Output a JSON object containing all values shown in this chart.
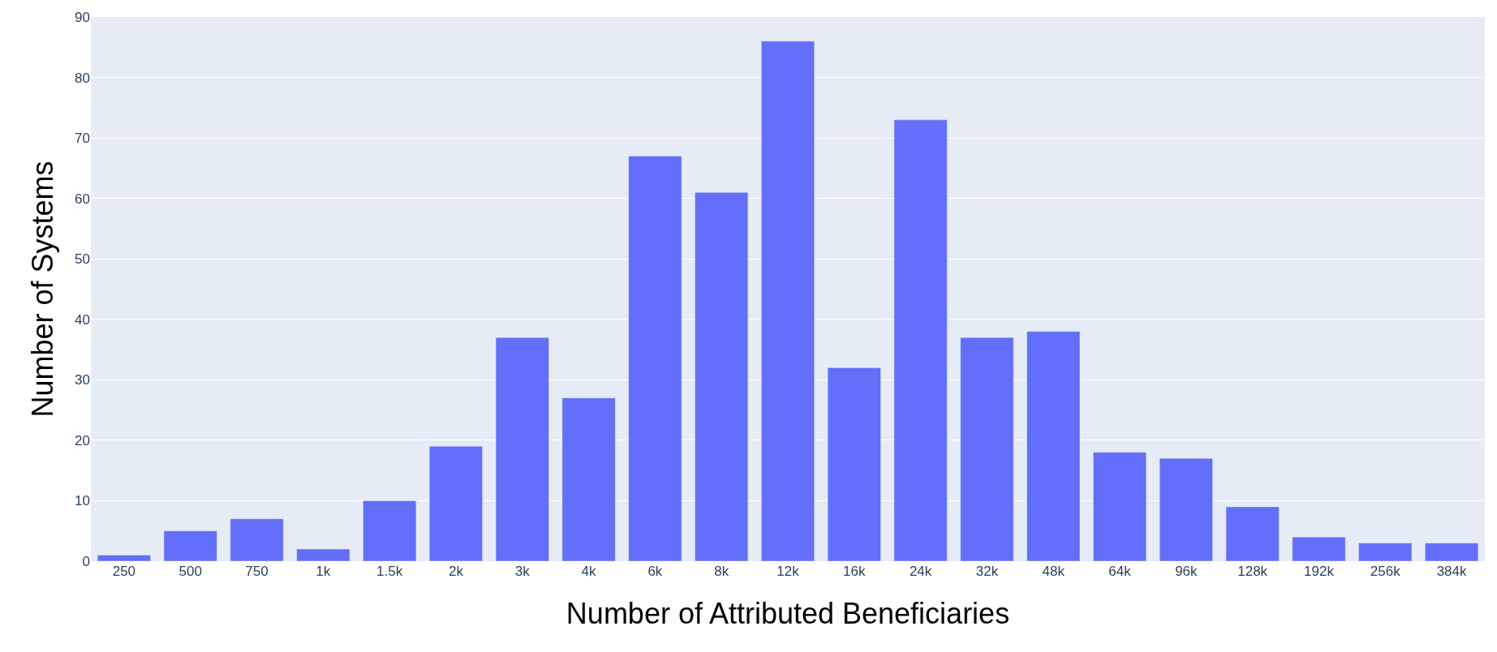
{
  "chart_data": {
    "type": "bar",
    "xlabel": "Number of Attributed Beneficiaries",
    "ylabel": "Number of Systems",
    "categories": [
      "250",
      "500",
      "750",
      "1k",
      "1.5k",
      "2k",
      "3k",
      "4k",
      "6k",
      "8k",
      "12k",
      "16k",
      "24k",
      "32k",
      "48k",
      "64k",
      "96k",
      "128k",
      "192k",
      "256k",
      "384k"
    ],
    "values": [
      1,
      5,
      7,
      2,
      10,
      19,
      37,
      27,
      67,
      61,
      86,
      32,
      73,
      37,
      38,
      18,
      17,
      9,
      4,
      3,
      3
    ],
    "color": "#636efa",
    "ylim": [
      0,
      90
    ],
    "yticks": [
      0,
      10,
      20,
      30,
      40,
      50,
      60,
      70,
      80,
      90
    ],
    "grid": "y"
  }
}
